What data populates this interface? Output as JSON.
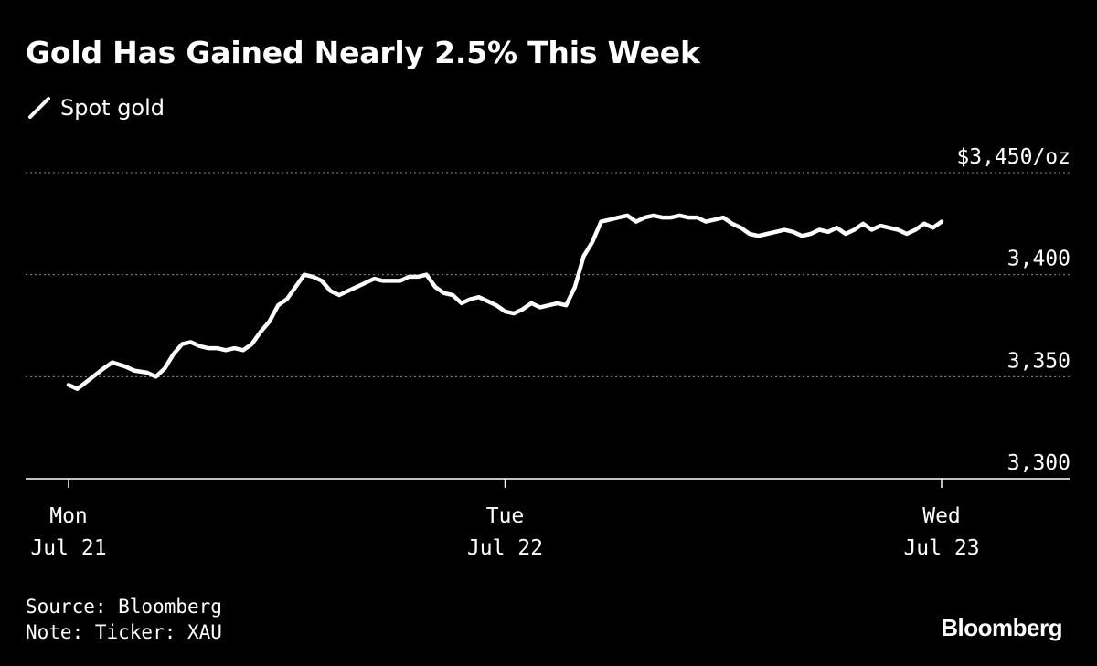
{
  "title": "Gold Has Gained Nearly 2.5% This Week",
  "legend": {
    "label": "Spot gold",
    "color": "#ffffff"
  },
  "footer": {
    "source": "Source: Bloomberg",
    "note": "Note: Ticker: XAU"
  },
  "brand": "Bloomberg",
  "colors": {
    "background": "#000000",
    "line": "#ffffff",
    "grid": "#8a8a8a"
  },
  "chart_data": {
    "type": "line",
    "title": "Gold Has Gained Nearly 2.5% This Week",
    "unit_label": "$3,450/oz",
    "ylim": [
      3300,
      3450
    ],
    "yticks": [
      {
        "value": 3450,
        "label": "$3,450/oz"
      },
      {
        "value": 3400,
        "label": "3,400"
      },
      {
        "value": 3350,
        "label": "3,350"
      },
      {
        "value": 3300,
        "label": "3,300"
      }
    ],
    "xlim": [
      0,
      2.2
    ],
    "xticks": [
      {
        "value": 0,
        "line1": "Mon",
        "line2": "Jul 21"
      },
      {
        "value": 1,
        "line1": "Tue",
        "line2": "Jul 22"
      },
      {
        "value": 2,
        "line1": "Wed",
        "line2": "Jul 23"
      }
    ],
    "grid": true,
    "legend_position": "top-left",
    "series": [
      {
        "name": "Spot gold",
        "x": [
          0.0,
          0.02,
          0.05,
          0.08,
          0.1,
          0.13,
          0.15,
          0.18,
          0.2,
          0.22,
          0.24,
          0.26,
          0.28,
          0.3,
          0.32,
          0.34,
          0.36,
          0.38,
          0.4,
          0.42,
          0.44,
          0.46,
          0.48,
          0.5,
          0.52,
          0.54,
          0.56,
          0.58,
          0.6,
          0.62,
          0.64,
          0.66,
          0.68,
          0.7,
          0.72,
          0.74,
          0.76,
          0.78,
          0.8,
          0.82,
          0.84,
          0.86,
          0.88,
          0.9,
          0.92,
          0.94,
          0.96,
          0.98,
          1.0,
          1.02,
          1.04,
          1.06,
          1.08,
          1.1,
          1.12,
          1.14,
          1.16,
          1.18,
          1.2,
          1.22,
          1.24,
          1.26,
          1.28,
          1.3,
          1.32,
          1.34,
          1.36,
          1.38,
          1.4,
          1.42,
          1.44,
          1.46,
          1.48,
          1.5,
          1.52,
          1.54,
          1.56,
          1.58,
          1.6,
          1.62,
          1.64,
          1.66,
          1.68,
          1.7,
          1.72,
          1.74,
          1.76,
          1.78,
          1.8,
          1.82,
          1.84,
          1.86,
          1.88,
          1.9,
          1.92,
          1.94,
          1.96,
          1.98,
          2.0
        ],
        "y": [
          3346,
          3344,
          3349,
          3354,
          3357,
          3355,
          3353,
          3352,
          3350,
          3354,
          3361,
          3366,
          3367,
          3365,
          3364,
          3364,
          3363,
          3364,
          3363,
          3366,
          3372,
          3377,
          3385,
          3388,
          3394,
          3400,
          3399,
          3397,
          3392,
          3390,
          3392,
          3394,
          3396,
          3398,
          3397,
          3397,
          3397,
          3399,
          3399,
          3400,
          3394,
          3391,
          3390,
          3386,
          3388,
          3389,
          3387,
          3385,
          3382,
          3381,
          3383,
          3386,
          3384,
          3385,
          3386,
          3385,
          3394,
          3409,
          3416,
          3426,
          3427,
          3428,
          3429,
          3426,
          3428,
          3429,
          3428,
          3428,
          3429,
          3428,
          3428,
          3426,
          3427,
          3428,
          3425,
          3423,
          3420,
          3419,
          3420,
          3421,
          3422,
          3421,
          3419,
          3420,
          3422,
          3421,
          3423,
          3420,
          3422,
          3425,
          3422,
          3424,
          3423,
          3422,
          3420,
          3422,
          3425,
          3423,
          3426
        ]
      }
    ]
  }
}
